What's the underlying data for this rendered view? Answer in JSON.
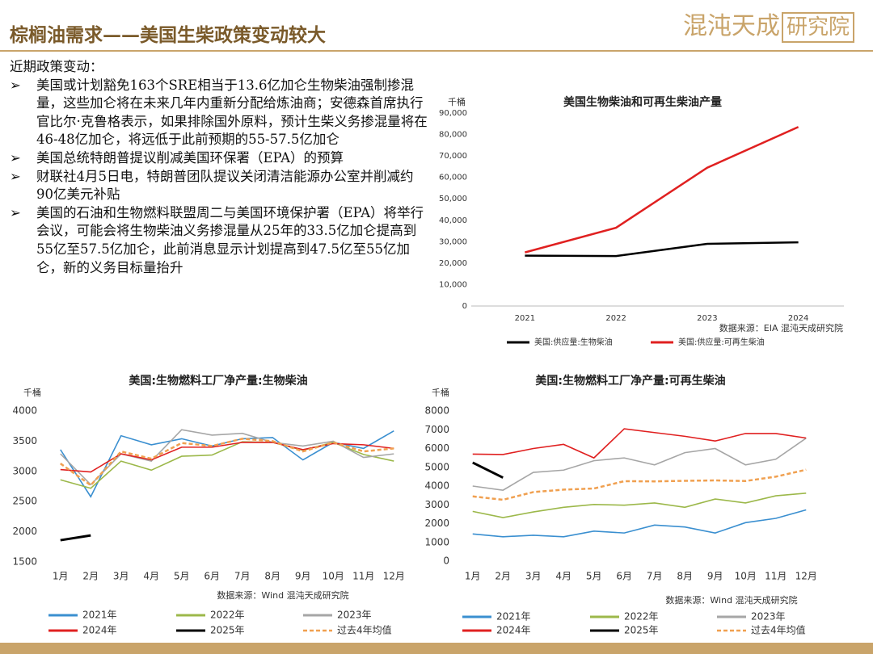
{
  "header": {
    "title": "棕榈油需求——美国生柴政策变动较大",
    "logo": [
      "混沌天成",
      "研究院"
    ]
  },
  "text": {
    "heading": "近期政策变动：",
    "bullets": [
      "美国或计划豁免163个SRE相当于13.6亿加仑生物柴油强制掺混量，这些加仑将在未来几年内重新分配给炼油商；安德森首席执行官比尔·克鲁格表示，如果排除国外原料，预计生柴义务掺混量将在46-48亿加仑，将远低于此前预期的55-57.5亿加仑",
      "美国总统特朗普提议削减美国环保署（EPA）的预算",
      "财联社4月5日电，特朗普团队提议关闭清洁能源办公室并削减约90亿美元补贴",
      "美国的石油和生物燃料联盟周二与美国环境保护署（EPA）将举行会议，可能会将生物柴油义务掺混量从25年的33.5亿加仑提高到55亿至57.5亿加仑，此前消息显示计划提高到47.5亿至55亿加仑，新的义务目标量抬升"
    ]
  },
  "chart_data": [
    {
      "type": "line",
      "title": "美国生物柴油和可再生柴油产量",
      "y_unit": "千桶",
      "source": "数据来源：EIA  混沌天成研究院",
      "categories": [
        "2021",
        "2022",
        "2023",
        "2024"
      ],
      "series": [
        {
          "name": "美国:供应量:生物柴油",
          "color": "#000000",
          "values": [
            23500,
            23300,
            29000,
            29700
          ]
        },
        {
          "name": "美国:供应量:可再生柴油",
          "color": "#e02020",
          "values": [
            25000,
            36500,
            64500,
            83500
          ]
        }
      ],
      "ylim": [
        0,
        90000
      ],
      "yticks": [
        0,
        {
          "value": 10000,
          "label": "10,000"
        },
        {
          "value": 20000,
          "label": "20,000"
        },
        {
          "value": 30000,
          "label": "30,000"
        },
        {
          "value": 40000,
          "label": "40,000"
        },
        {
          "value": 50000,
          "label": "50,000"
        },
        {
          "value": 60000,
          "label": "60,000"
        },
        {
          "value": 70000,
          "label": "70,000"
        },
        {
          "value": 80000,
          "label": "80,000"
        },
        {
          "value": 90000,
          "label": "90,000"
        }
      ],
      "grid": false
    },
    {
      "type": "line",
      "title": "美国:生物燃料工厂净产量:生物柴油",
      "y_unit": "千桶",
      "source": "数据来源：Wind  混沌天成研究院",
      "categories": [
        "1月",
        "2月",
        "3月",
        "4月",
        "5月",
        "6月",
        "7月",
        "8月",
        "9月",
        "10月",
        "11月",
        "12月"
      ],
      "series": [
        {
          "name": "2021年",
          "color": "#3a8fd0",
          "values": [
            3360,
            2580,
            3590,
            3440,
            3540,
            3420,
            3540,
            3560,
            3190,
            3480,
            3380,
            3670
          ]
        },
        {
          "name": "2022年",
          "color": "#9cb84a",
          "values": [
            2860,
            2720,
            3170,
            3020,
            3250,
            3270,
            3490,
            3480,
            3350,
            3480,
            3280,
            3170
          ]
        },
        {
          "name": "2023年",
          "color": "#a6a6a6",
          "values": [
            3290,
            2780,
            3290,
            3170,
            3690,
            3600,
            3630,
            3480,
            3420,
            3500,
            3230,
            3290
          ]
        },
        {
          "name": "2024年",
          "color": "#e02020",
          "values": [
            3030,
            2990,
            3290,
            3190,
            3400,
            3400,
            3480,
            3480,
            3360,
            3460,
            3440,
            3380
          ]
        },
        {
          "name": "2025年",
          "color": "#000000",
          "values": [
            1860,
            1940,
            null,
            null,
            null,
            null,
            null,
            null,
            null,
            null,
            null,
            null
          ]
        },
        {
          "name": "过去4年均值",
          "color": "#f0a050",
          "line_style": "dashed",
          "values": [
            3130,
            2770,
            3330,
            3210,
            3470,
            3420,
            3540,
            3500,
            3330,
            3480,
            3330,
            3380
          ]
        }
      ],
      "ylim": [
        1500,
        4000
      ],
      "yticks": [
        1500,
        2000,
        2500,
        3000,
        3500,
        4000
      ],
      "grid": false
    },
    {
      "type": "line",
      "title": "美国:生物燃料工厂净产量:可再生柴油",
      "y_unit": "千桶",
      "source": "数据来源：Wind  混沌天成研究院",
      "categories": [
        "1月",
        "2月",
        "3月",
        "4月",
        "5月",
        "6月",
        "7月",
        "8月",
        "9月",
        "10月",
        "11月",
        "12月"
      ],
      "series": [
        {
          "name": "2021年",
          "color": "#3a8fd0",
          "values": [
            1450,
            1300,
            1380,
            1300,
            1600,
            1500,
            1920,
            1820,
            1500,
            2050,
            2280,
            2730
          ]
        },
        {
          "name": "2022年",
          "color": "#9cb84a",
          "values": [
            2650,
            2320,
            2620,
            2870,
            3020,
            2980,
            3100,
            2870,
            3310,
            3100,
            3480,
            3620
          ]
        },
        {
          "name": "2023年",
          "color": "#a6a6a6",
          "values": [
            4000,
            3780,
            4730,
            4850,
            5350,
            5500,
            5130,
            5780,
            6000,
            5130,
            5430,
            6550
          ]
        },
        {
          "name": "2024年",
          "color": "#e02020",
          "values": [
            5700,
            5680,
            6000,
            6220,
            5500,
            7050,
            6850,
            6650,
            6400,
            6800,
            6800,
            6560
          ]
        },
        {
          "name": "2025年",
          "color": "#000000",
          "values": [
            5250,
            4450,
            null,
            null,
            null,
            null,
            null,
            null,
            null,
            null,
            null,
            null
          ]
        },
        {
          "name": "过去4年均值",
          "color": "#f0a050",
          "line_style": "dashed",
          "values": [
            3450,
            3270,
            3680,
            3810,
            3870,
            4260,
            4250,
            4280,
            4300,
            4270,
            4500,
            4870
          ]
        }
      ],
      "ylim": [
        0,
        8000
      ],
      "yticks": [
        0,
        1000,
        2000,
        3000,
        4000,
        5000,
        6000,
        7000,
        8000
      ],
      "grid": false
    }
  ]
}
